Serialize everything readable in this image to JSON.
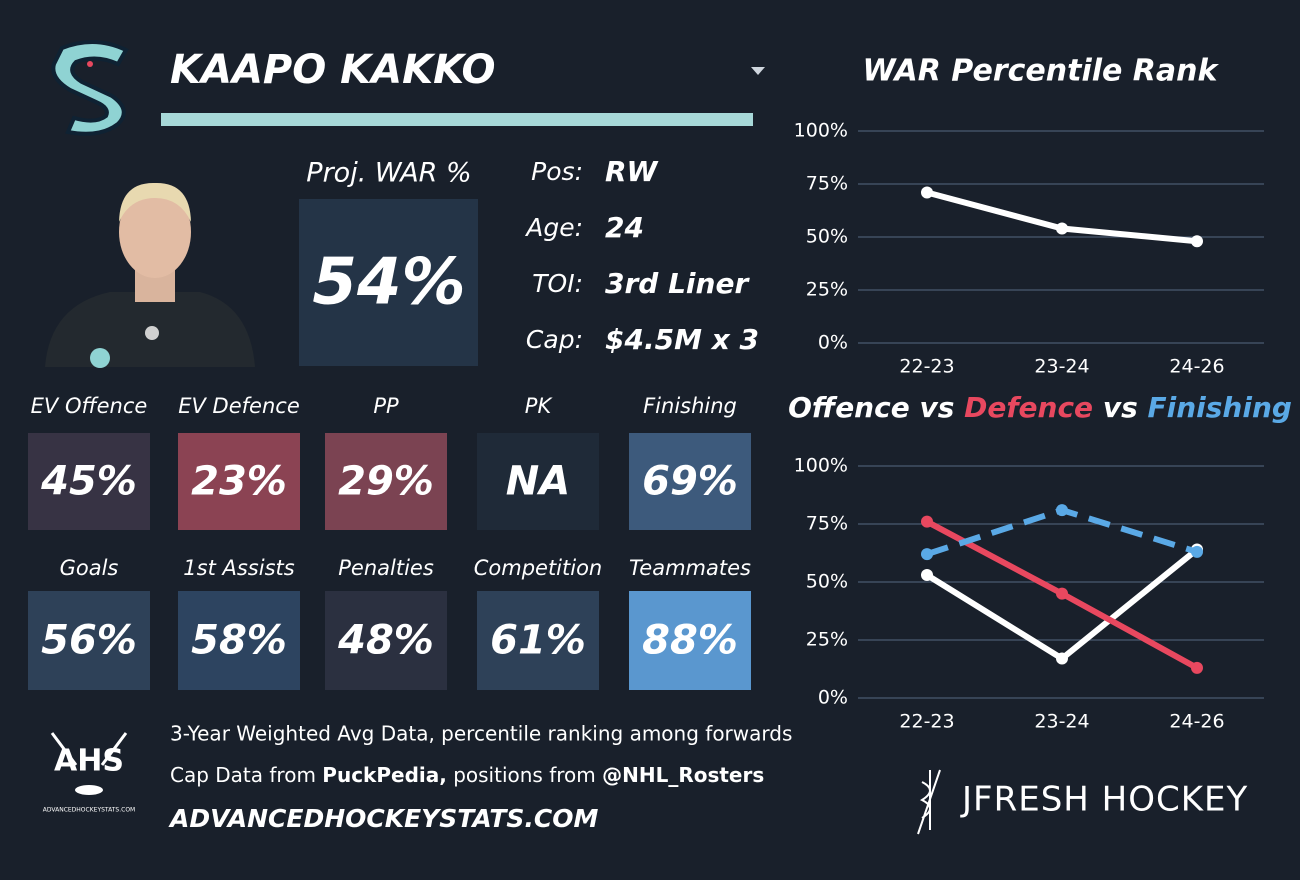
{
  "player": {
    "name": "KAAPO KAKKO"
  },
  "projection": {
    "label": "Proj. WAR %",
    "value": "54%"
  },
  "info": [
    {
      "label": "Pos:",
      "value": "RW"
    },
    {
      "label": "Age:",
      "value": "24"
    },
    {
      "label": "TOI:",
      "value": "3rd Liner"
    },
    {
      "label": "Cap:",
      "value": "$4.5M x 3"
    }
  ],
  "tiles": [
    [
      {
        "label": "EV Offence",
        "value": "45%",
        "color": "#373344"
      },
      {
        "label": "EV Defence",
        "value": "23%",
        "color": "#8b4353"
      },
      {
        "label": "PP",
        "value": "29%",
        "color": "#7b4352"
      },
      {
        "label": "PK",
        "value": "NA",
        "color": "#1f2a38"
      },
      {
        "label": "Finishing",
        "value": "69%",
        "color": "#3d5a7c"
      }
    ],
    [
      {
        "label": "Goals",
        "value": "56%",
        "color": "#2e4158"
      },
      {
        "label": "1st Assists",
        "value": "58%",
        "color": "#2d4460"
      },
      {
        "label": "Penalties",
        "value": "48%",
        "color": "#2b3040"
      },
      {
        "label": "Competition",
        "value": "61%",
        "color": "#2e4158"
      },
      {
        "label": "Teammates",
        "value": "88%",
        "color": "#5a97cf"
      }
    ]
  ],
  "footer": {
    "line1": "3-Year Weighted Avg Data, percentile ranking among forwards",
    "line2": [
      "Cap Data from ",
      "PuckPedia,",
      " positions from ",
      "@NHL_Rosters"
    ],
    "website": "ADVANCEDHOCKEYSTATS.COM",
    "ahs_logo": "AHS",
    "ahs_logo_caption": "ADVANCEDHOCKEYSTATS.COM",
    "brand": "JFRESH HOCKEY"
  },
  "chart_data": [
    {
      "type": "line",
      "title": "WAR Percentile Rank",
      "categories": [
        "22-23",
        "23-24",
        "24-26"
      ],
      "series": [
        {
          "color": "#ffffff",
          "values": [
            71,
            54,
            48
          ]
        }
      ],
      "ylim": [
        0,
        100
      ],
      "yticks": [
        {
          "value": 0,
          "label": "0%"
        },
        {
          "value": 25,
          "label": "25%"
        },
        {
          "value": 50,
          "label": "50%"
        },
        {
          "value": 75,
          "label": "75%"
        },
        {
          "value": 100,
          "label": "100%"
        }
      ],
      "grid": true
    },
    {
      "type": "line",
      "title_separator": "vs",
      "categories": [
        "22-23",
        "23-24",
        "24-26"
      ],
      "series": [
        {
          "name": "Offence",
          "color": "#ffffff",
          "style": "solid",
          "values": [
            53,
            17,
            64
          ]
        },
        {
          "name": "Defence",
          "color": "#e8485f",
          "style": "solid",
          "values": [
            76,
            45,
            13
          ]
        },
        {
          "name": "Finishing",
          "color": "#5aa9e6",
          "style": "dashed",
          "values": [
            62,
            81,
            63
          ]
        }
      ],
      "ylim": [
        0,
        100
      ],
      "yticks": [
        {
          "value": 0,
          "label": "0%"
        },
        {
          "value": 25,
          "label": "25%"
        },
        {
          "value": 50,
          "label": "50%"
        },
        {
          "value": 75,
          "label": "75%"
        },
        {
          "value": 100,
          "label": "100%"
        }
      ],
      "grid": true
    }
  ]
}
